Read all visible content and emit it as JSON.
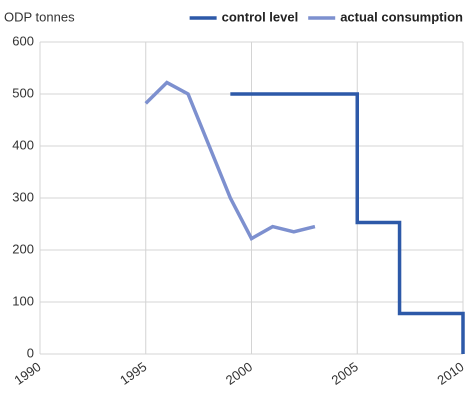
{
  "chart_data": {
    "type": "line",
    "y_label": "ODP tonnes",
    "series": [
      {
        "name": "control level",
        "color": "#2d59a8",
        "x": [
          1999,
          2005,
          2005,
          2007,
          2007,
          2010,
          2010
        ],
        "values": [
          500,
          500,
          253,
          253,
          78,
          78,
          0
        ]
      },
      {
        "name": "actual consumption",
        "color": "#7d90cf",
        "x": [
          1995,
          1996,
          1997,
          1998,
          1999,
          2000,
          2001,
          2002,
          2003
        ],
        "values": [
          482,
          522,
          500,
          400,
          300,
          222,
          245,
          235,
          245
        ]
      }
    ],
    "xlim": [
      1990,
      2010
    ],
    "xticks": [
      1990,
      1995,
      2000,
      2005,
      2010
    ],
    "ylim": [
      0,
      600
    ],
    "yticks": [
      0,
      100,
      200,
      300,
      400,
      500,
      600
    ],
    "grid": true,
    "legend": "top-right"
  }
}
